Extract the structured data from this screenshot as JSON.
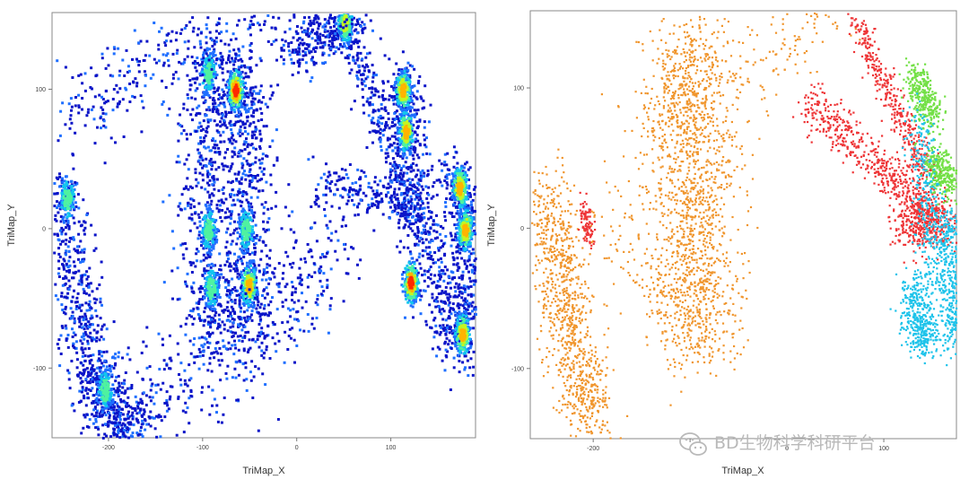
{
  "chart_data": [
    {
      "type": "scatter",
      "name": "density-plot",
      "xlabel": "TriMap_X",
      "ylabel": "TriMap_Y",
      "xlim": [
        -260,
        190
      ],
      "ylim": [
        -150,
        155
      ],
      "xticks": [
        -200,
        -100,
        0,
        100
      ],
      "yticks": [
        -100,
        0,
        100
      ],
      "xtick_labels": [
        "-200",
        "-100",
        "0",
        "100"
      ],
      "ytick_labels": [
        "-100",
        "0",
        "100"
      ],
      "color_mode": "density",
      "palette": [
        "#0a14c8",
        "#1f6fff",
        "#12c6ee",
        "#4ff2a0",
        "#c4f522",
        "#ffb400",
        "#ff2a00"
      ],
      "grid": false,
      "legend": "none",
      "clusters": [
        {
          "x": [
            -252,
            -238,
            -220,
            -195,
            -172
          ],
          "y": [
            28,
            -50,
            -105,
            -135,
            -140
          ],
          "spread": 14,
          "n": 900,
          "peaks": [
            {
              "x": -245,
              "y": 22,
              "level": 0.55
            },
            {
              "x": -205,
              "y": -115,
              "level": 0.55
            }
          ]
        },
        {
          "x": [
            -92,
            -94,
            -96,
            -93,
            -90
          ],
          "y": [
            120,
            80,
            20,
            -40,
            -75
          ],
          "spread": 16,
          "n": 650,
          "peaks": [
            {
              "x": -95,
              "y": 112,
              "level": 0.5
            },
            {
              "x": -95,
              "y": 0,
              "level": 0.5
            },
            {
              "x": -92,
              "y": -42,
              "level": 0.55
            }
          ]
        },
        {
          "x": [
            -60,
            -56,
            -52,
            -52,
            -56
          ],
          "y": [
            118,
            75,
            20,
            -40,
            -78
          ],
          "spread": 14,
          "n": 650,
          "peaks": [
            {
              "x": -66,
              "y": 100,
              "level": 0.95
            },
            {
              "x": -55,
              "y": 0,
              "level": 0.55
            },
            {
              "x": -52,
              "y": -40,
              "level": 0.85
            }
          ]
        },
        {
          "x": [
            -240,
            -200,
            -140,
            -80,
            -20,
            30,
            50
          ],
          "y": [
            70,
            100,
            125,
            140,
            150,
            150,
            148
          ],
          "spread": 16,
          "n": 450,
          "peaks": []
        },
        {
          "x": [
            -170,
            -130,
            -80,
            -30,
            10,
            45
          ],
          "y": [
            -140,
            -115,
            -90,
            -65,
            -40,
            0
          ],
          "spread": 22,
          "n": 420,
          "peaks": []
        },
        {
          "x": [
            -5,
            20,
            45,
            60
          ],
          "y": [
            125,
            138,
            145,
            150
          ],
          "spread": 9,
          "n": 250,
          "peaks": [
            {
              "x": 50,
              "y": 148,
              "level": 0.65
            }
          ]
        },
        {
          "x": [
            50,
            70,
            90,
            110,
            125
          ],
          "y": [
            145,
            110,
            70,
            35,
            5
          ],
          "spread": 7,
          "n": 260,
          "peaks": []
        },
        {
          "x": [
            20,
            50,
            80,
            110,
            145
          ],
          "y": [
            35,
            30,
            25,
            20,
            5
          ],
          "spread": 8,
          "n": 220,
          "peaks": []
        },
        {
          "x": [
            110,
            112,
            118,
            130,
            145,
            165
          ],
          "y": [
            105,
            80,
            45,
            0,
            -45,
            -85
          ],
          "spread": 13,
          "n": 650,
          "peaks": [
            {
              "x": 112,
              "y": 100,
              "level": 0.75
            },
            {
              "x": 115,
              "y": 70,
              "level": 0.75
            },
            {
              "x": 120,
              "y": -38,
              "level": 0.95
            }
          ]
        },
        {
          "x": [
            165,
            175,
            178,
            180,
            176,
            172
          ],
          "y": [
            40,
            25,
            0,
            -30,
            -60,
            -80
          ],
          "spread": 10,
          "n": 500,
          "peaks": [
            {
              "x": 172,
              "y": 30,
              "level": 0.75
            },
            {
              "x": 178,
              "y": 0,
              "level": 0.8
            },
            {
              "x": 175,
              "y": -75,
              "level": 0.9
            }
          ]
        }
      ]
    },
    {
      "type": "scatter",
      "name": "cluster-colored-plot",
      "xlabel": "TriMap_X",
      "ylabel": "TriMap_Y",
      "xlim": [
        -265,
        175
      ],
      "ylim": [
        -150,
        155
      ],
      "xticks": [
        -200,
        -100,
        0,
        100
      ],
      "yticks": [
        -100,
        0,
        100
      ],
      "xtick_labels": [
        "-200",
        "",
        "0",
        "100"
      ],
      "ytick_labels": [
        "-100",
        "0",
        "100"
      ],
      "color_mode": "cluster",
      "grid": false,
      "legend": "none",
      "series": [
        {
          "color": "#f0962e",
          "clusters": [
            {
              "x": [
                -245,
                -238,
                -228,
                -215,
                -200
              ],
              "y": [
                25,
                -20,
                -60,
                -105,
                -135
              ],
              "spread": 13,
              "n": 900
            },
            {
              "x": [
                -100,
                -100,
                -98,
                -96,
                -94
              ],
              "y": [
                125,
                80,
                20,
                -40,
                -75
              ],
              "spread": 22,
              "n": 1500
            },
            {
              "x": [
                -160,
                -120,
                -60,
                -20,
                10,
                50
              ],
              "y": [
                80,
                95,
                115,
                125,
                140,
                148
              ],
              "spread": 18,
              "n": 200
            },
            {
              "x": [
                -200,
                -160,
                -130
              ],
              "y": [
                -10,
                0,
                -20
              ],
              "spread": 30,
              "n": 120
            }
          ]
        },
        {
          "color": "#ee3537",
          "clusters": [
            {
              "x": [
                20,
                55,
                95,
                125,
                150
              ],
              "y": [
                90,
                70,
                45,
                25,
                5
              ],
              "spread": 8,
              "n": 550
            },
            {
              "x": [
                70,
                90,
                110,
                130,
                145
              ],
              "y": [
                145,
                120,
                90,
                60,
                35
              ],
              "spread": 6,
              "n": 380
            },
            {
              "x": [
                120,
                140,
                160
              ],
              "y": [
                0,
                10,
                0
              ],
              "spread": 10,
              "n": 380
            },
            {
              "x": [
                -210,
                -205
              ],
              "y": [
                18,
                -8
              ],
              "spread": 4,
              "n": 90
            }
          ]
        },
        {
          "color": "#73e046",
          "clusters": [
            {
              "x": [
                130,
                140,
                148
              ],
              "y": [
                110,
                95,
                80
              ],
              "spread": 7,
              "n": 320
            },
            {
              "x": [
                150,
                160,
                170
              ],
              "y": [
                50,
                40,
                30
              ],
              "spread": 7,
              "n": 320
            }
          ]
        },
        {
          "color": "#1ec3ea",
          "clusters": [
            {
              "x": [
                135,
                140,
                145,
                148
              ],
              "y": [
                80,
                40,
                0,
                -40
              ],
              "spread": 7,
              "n": 260
            },
            {
              "x": [
                130,
                132,
                138,
                145
              ],
              "y": [
                -40,
                -60,
                -75,
                -80
              ],
              "spread": 8,
              "n": 380
            },
            {
              "x": [
                162,
                168,
                172,
                170
              ],
              "y": [
                10,
                -20,
                -50,
                -80
              ],
              "spread": 9,
              "n": 480
            }
          ]
        }
      ]
    }
  ],
  "watermark": {
    "icon": "wechat-icon",
    "text": "BD生物科学科研平台"
  }
}
